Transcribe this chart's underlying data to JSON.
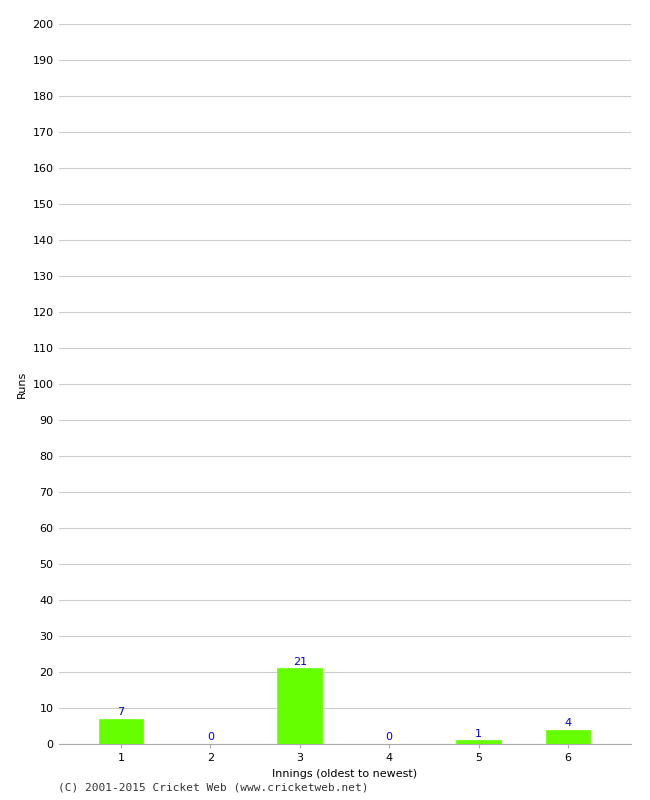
{
  "title": "",
  "categories": [
    "1",
    "2",
    "3",
    "4",
    "5",
    "6"
  ],
  "values": [
    7,
    0,
    21,
    0,
    1,
    4
  ],
  "bar_color": "#66ff00",
  "bar_edge_color": "#66ff00",
  "value_label_color": "#0000cc",
  "xlabel": "Innings (oldest to newest)",
  "ylabel": "Runs",
  "ylim": [
    0,
    200
  ],
  "ytick_step": 10,
  "background_color": "#ffffff",
  "grid_color": "#cccccc",
  "footer_text": "(C) 2001-2015 Cricket Web (www.cricketweb.net)",
  "value_fontsize": 8,
  "axis_label_fontsize": 8,
  "tick_fontsize": 8,
  "footer_fontsize": 8
}
